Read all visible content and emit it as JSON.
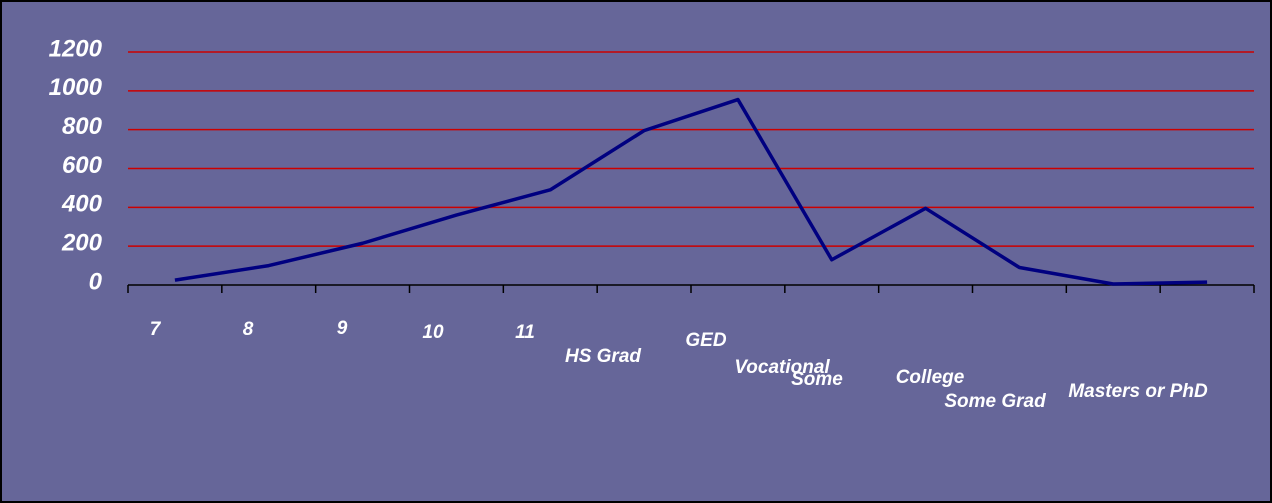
{
  "chart_data": {
    "type": "line",
    "categories": [
      "7",
      "8",
      "9",
      "10",
      "11",
      "HS Grad",
      "GED",
      "Vocational",
      "Some",
      "College",
      "Some Grad",
      "Masters or PhD"
    ],
    "values": [
      25,
      100,
      215,
      360,
      490,
      795,
      955,
      130,
      395,
      90,
      5,
      15
    ],
    "color": "#000080",
    "grid_color": "#cc0000",
    "ylim": [
      0,
      1200
    ],
    "yticks": [
      0,
      200,
      400,
      600,
      800,
      1000,
      1200
    ],
    "grid": true
  }
}
